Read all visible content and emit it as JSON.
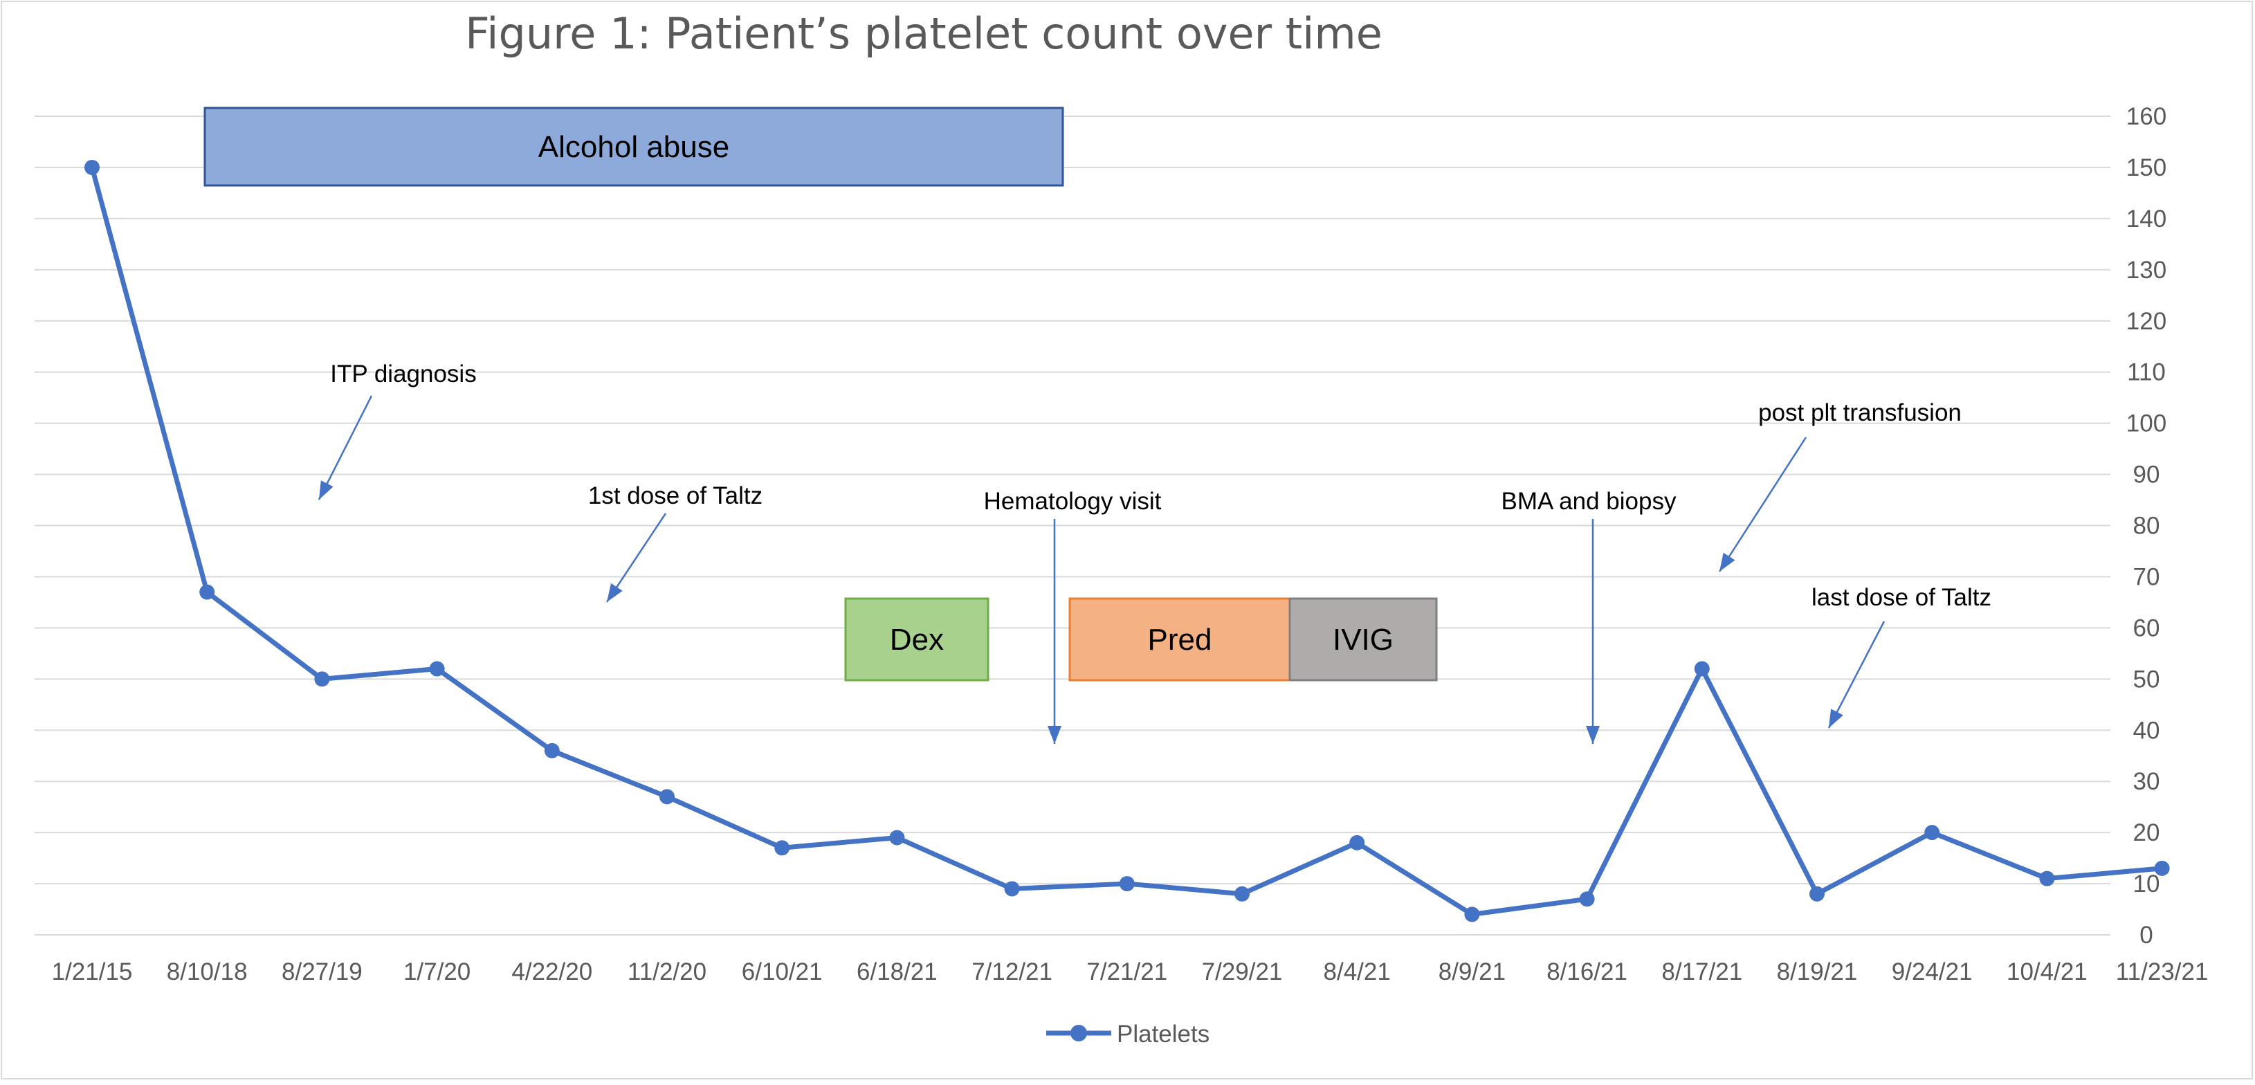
{
  "chart_data": {
    "type": "line",
    "title": "Figure 1: Patient’s platelet count over time",
    "categories": [
      "1/21/15",
      "8/10/18",
      "8/27/19",
      "1/7/20",
      "4/22/20",
      "11/2/20",
      "6/10/21",
      "6/18/21",
      "7/12/21",
      "7/21/21",
      "7/29/21",
      "8/4/21",
      "8/9/21",
      "8/16/21",
      "8/17/21",
      "8/19/21",
      "9/24/21",
      "10/4/21",
      "11/23/21"
    ],
    "series": [
      {
        "name": "Platelets",
        "values": [
          150,
          67,
          50,
          52,
          36,
          27,
          17,
          19,
          9,
          10,
          8,
          18,
          4,
          7,
          52,
          8,
          20,
          11,
          13
        ],
        "color": "#4472C4"
      }
    ],
    "y_ticks": [
      "0",
      "10",
      "20",
      "30",
      "40",
      "50",
      "60",
      "70",
      "80",
      "90",
      "100",
      "110",
      "120",
      "130",
      "140",
      "150",
      "160"
    ],
    "ylim": [
      0,
      160
    ],
    "y_axis_side": "right",
    "grid": true,
    "legend": "bottom",
    "xlabel": "",
    "ylabel": "",
    "annotations": [
      {
        "id": "itp",
        "text": "ITP diagnosis"
      },
      {
        "id": "taltz1",
        "text": "1st dose of Taltz"
      },
      {
        "id": "hem",
        "text": "Hematology visit"
      },
      {
        "id": "bma",
        "text": "BMA and biopsy"
      },
      {
        "id": "plt",
        "text": "post plt transfusion"
      },
      {
        "id": "taltzlast",
        "text": "last dose of Taltz"
      }
    ],
    "treatment_boxes": [
      {
        "id": "alcohol",
        "text": "Alcohol abuse",
        "fill": "#8EAADB",
        "stroke": "#2F5597"
      },
      {
        "id": "dex",
        "text": "Dex",
        "fill": "#A9D18E",
        "stroke": "#70AD47"
      },
      {
        "id": "pred",
        "text": "Pred",
        "fill": "#F4B183",
        "stroke": "#ED7D31"
      },
      {
        "id": "ivig",
        "text": "IVIG",
        "fill": "#AFABAB",
        "stroke": "#7F7F7F"
      }
    ]
  }
}
